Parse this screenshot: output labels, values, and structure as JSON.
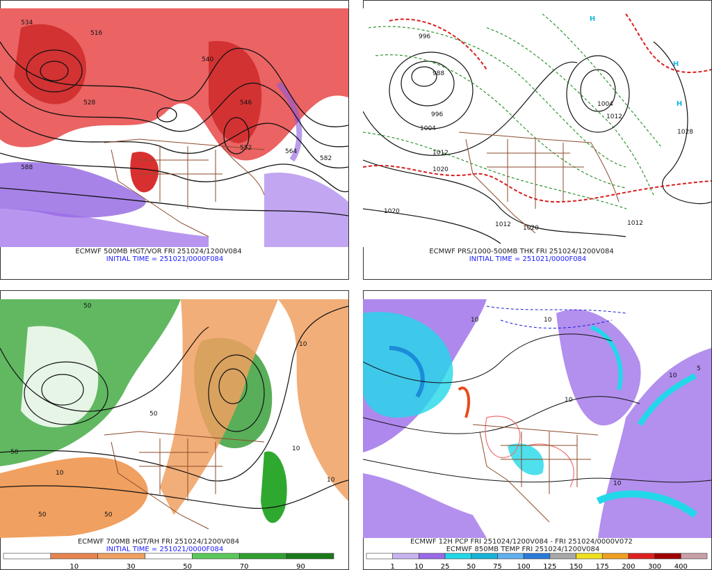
{
  "panels": [
    {
      "caption": "ECMWF 500MB HGT/VOR FRI 251024/1200V084",
      "initial_time": "INITIAL TIME = 251021/0000F084",
      "contour_labels": [
        "534",
        "516",
        "528",
        "540",
        "546",
        "552",
        "564",
        "582",
        "588"
      ]
    },
    {
      "caption": "ECMWF PRS/1000-500MB THK FRI 251024/1200V084",
      "initial_time": "INITIAL TIME = 251021/0000F084",
      "contour_labels": [
        "996",
        "988",
        "996",
        "1004",
        "1012",
        "1020",
        "1004",
        "1012",
        "1028",
        "1020",
        "1012",
        "1020",
        "1012"
      ],
      "highs": [
        "H",
        "H",
        "H"
      ]
    },
    {
      "caption": "ECMWF 700MB HGT/RH FRI 251024/1200V084",
      "initial_time": "INITIAL TIME = 251021/0000F084",
      "contour_labels": [
        "50",
        "50",
        "10",
        "50",
        "10",
        "50",
        "10",
        "50",
        "10"
      ],
      "colorbar_labels": [
        10,
        30,
        50,
        70,
        90
      ]
    },
    {
      "caption": "ECMWF 12H PCP FRI 251024/1200V084 - FRI 251024/0000V072",
      "subcaption": "ECMWF 850MB TEMP FRI 251024/1200V084",
      "contour_labels": [
        "10",
        "10",
        "10",
        "10",
        "5",
        "10"
      ],
      "colorbar_labels": [
        1,
        10,
        25,
        50,
        75,
        100,
        125,
        150,
        175,
        200,
        300,
        400
      ]
    }
  ]
}
